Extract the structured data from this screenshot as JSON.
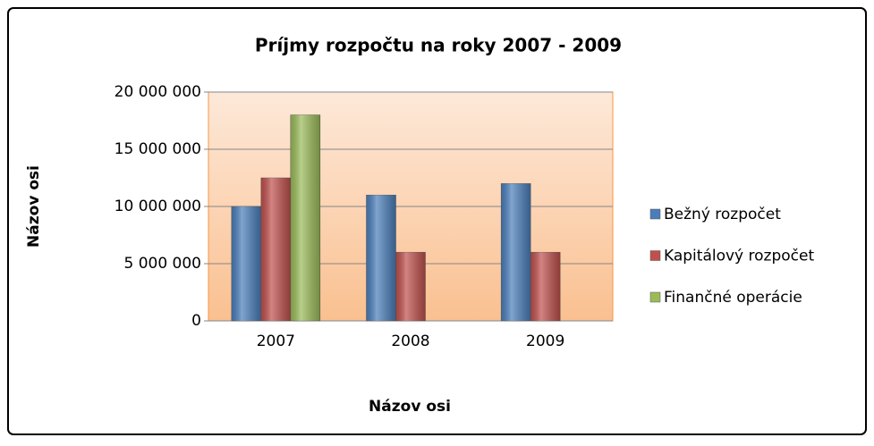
{
  "chart_data": {
    "type": "bar",
    "title": "Príjmy rozpočtu na roky 2007 - 2009",
    "x_label": "Názov osi",
    "y_label": "Názov osi",
    "categories": [
      "2007",
      "2008",
      "2009"
    ],
    "series": [
      {
        "name": "Bežný rozpočet",
        "color": "#4a7ebb",
        "values": [
          10000000,
          11000000,
          12000000
        ]
      },
      {
        "name": "Kapitálový rozpočet",
        "color": "#c0504d",
        "values": [
          12500000,
          6000000,
          6000000
        ]
      },
      {
        "name": "Finančné operácie",
        "color": "#9bbb59",
        "values": [
          18000000,
          null,
          null
        ]
      }
    ],
    "ylim": [
      0,
      20000000
    ],
    "yticks": [
      0,
      {
        "value": 5000000,
        "label": "5 000 000"
      },
      {
        "value": 10000000,
        "label": "10 000 000"
      },
      {
        "value": 15000000,
        "label": "15 000 000"
      },
      {
        "value": 20000000,
        "label": "20 000 000"
      }
    ],
    "grid": true,
    "legend": "right"
  }
}
